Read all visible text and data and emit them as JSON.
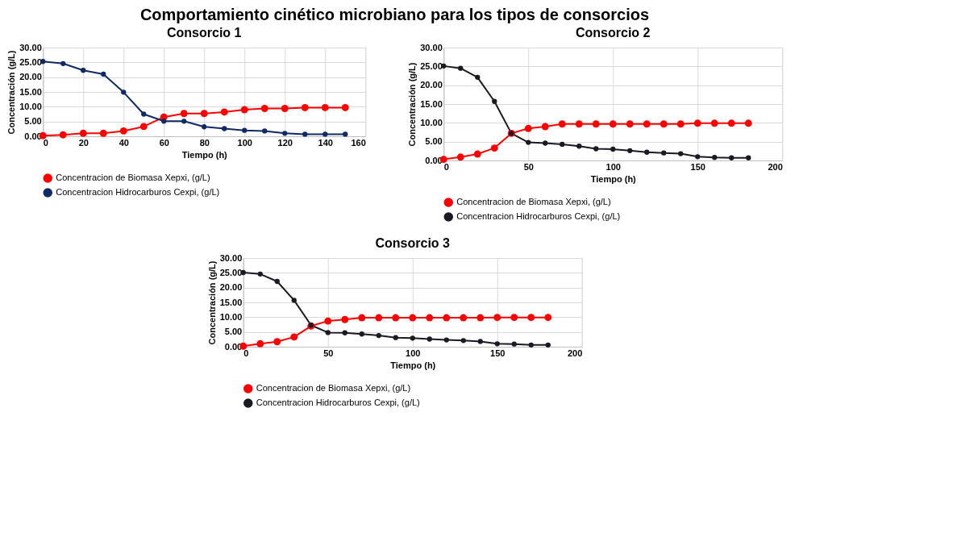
{
  "chart_data": [
    {
      "type": "other",
      "title": "Comportamiento cinético microbiano para los tipos de consorcios"
    },
    {
      "type": "line",
      "title": "Consorcio 1",
      "xlabel": "Tiempo (h)",
      "ylabel": "Concentración (g/L)",
      "marker": "circle",
      "grid": true,
      "legend": "bottom",
      "x": [
        0,
        10,
        20,
        30,
        40,
        50,
        60,
        70,
        80,
        90,
        100,
        110,
        120,
        130,
        140,
        150
      ],
      "xlim": [
        0,
        160
      ],
      "xticks": [
        0,
        20,
        40,
        60,
        80,
        100,
        120,
        140,
        160
      ],
      "ylim": [
        0,
        30
      ],
      "yticks": [
        {
          "value": 0,
          "label": "0.00"
        },
        {
          "value": 5,
          "label": "5.00"
        },
        {
          "value": 10,
          "label": "10.00"
        },
        {
          "value": 15,
          "label": "15.00"
        },
        {
          "value": 20,
          "label": "20.00"
        },
        {
          "value": 25,
          "label": "25.00"
        },
        {
          "value": 30,
          "label": "30.00"
        }
      ],
      "series": [
        {
          "name": "Concentracion de  Biomasa Xepxi, (g/L)",
          "color": "#ff0000",
          "values": [
            0.2,
            0.5,
            1.0,
            1.0,
            1.8,
            3.3,
            6.5,
            7.7,
            7.7,
            8.2,
            9.0,
            9.4,
            9.4,
            9.7,
            9.7,
            9.7
          ]
        },
        {
          "name": "Concentracion Hidrocarburos Cexpi, (g/L)",
          "color": "#102a66",
          "values": [
            25.3,
            24.6,
            22.3,
            21.0,
            14.9,
            7.5,
            5.1,
            5.1,
            3.2,
            2.6,
            2.0,
            1.8,
            1.0,
            0.7,
            0.7,
            0.7
          ]
        }
      ]
    },
    {
      "type": "line",
      "title": "Consorcio 2",
      "xlabel": "Tiempo (h)",
      "ylabel": "Concentración (g/L)",
      "marker": "circle",
      "grid": true,
      "legend": "bottom",
      "x": [
        0,
        10,
        20,
        30,
        40,
        50,
        60,
        70,
        80,
        90,
        100,
        110,
        120,
        130,
        140,
        150,
        160,
        170,
        180
      ],
      "xlim": [
        0,
        200
      ],
      "xticks": [
        0,
        50,
        100,
        150,
        200
      ],
      "ylim": [
        0,
        30
      ],
      "yticks": [
        {
          "value": 0,
          "label": "0.00"
        },
        {
          "value": 5,
          "label": "5.00"
        },
        {
          "value": 10,
          "label": "10.00"
        },
        {
          "value": 15,
          "label": "15.00"
        },
        {
          "value": 20,
          "label": "20.00"
        },
        {
          "value": 25,
          "label": "25.00"
        },
        {
          "value": 30,
          "label": "30.00"
        }
      ],
      "series": [
        {
          "name": "Concentracion de  Biomasa Xepxi, (g/L)",
          "color": "#ff0000",
          "values": [
            0.3,
            0.9,
            1.7,
            3.3,
            7.2,
            8.5,
            9.0,
            9.7,
            9.7,
            9.7,
            9.7,
            9.7,
            9.7,
            9.7,
            9.7,
            9.9,
            9.9,
            9.9,
            9.9
          ]
        },
        {
          "name": "Concentracion Hidrocarburos Cexpi, (g/L)",
          "color": "#1a1a24",
          "values": [
            25.1,
            24.5,
            22.1,
            15.7,
            7.2,
            4.8,
            4.6,
            4.3,
            3.8,
            3.1,
            3.0,
            2.6,
            2.2,
            2.0,
            1.8,
            1.0,
            0.8,
            0.7,
            0.7
          ]
        }
      ]
    },
    {
      "type": "line",
      "title": "Consorcio 3",
      "xlabel": "Tiempo (h)",
      "ylabel": "Concentración (g/L)",
      "marker": "circle",
      "grid": true,
      "legend": "bottom",
      "x": [
        0,
        10,
        20,
        30,
        40,
        50,
        60,
        70,
        80,
        90,
        100,
        110,
        120,
        130,
        140,
        150,
        160,
        170,
        180
      ],
      "xlim": [
        0,
        200
      ],
      "xticks": [
        0,
        50,
        100,
        150,
        200
      ],
      "ylim": [
        0,
        30
      ],
      "yticks": [
        {
          "value": 0,
          "label": "0.00"
        },
        {
          "value": 5,
          "label": "5.00"
        },
        {
          "value": 10,
          "label": "10.00"
        },
        {
          "value": 15,
          "label": "15.00"
        },
        {
          "value": 20,
          "label": "20.00"
        },
        {
          "value": 25,
          "label": "25.00"
        },
        {
          "value": 30,
          "label": "30.00"
        }
      ],
      "series": [
        {
          "name": "Concentracion de  Biomasa Xepxi, (g/L)",
          "color": "#ff0000",
          "values": [
            0.2,
            1.0,
            1.7,
            3.3,
            7.0,
            8.7,
            9.2,
            9.8,
            9.8,
            9.8,
            9.8,
            9.8,
            9.8,
            9.8,
            9.8,
            9.9,
            9.9,
            9.9,
            9.9
          ]
        },
        {
          "name": "Concentracion Hidrocarburos Cexpi, (g/L)",
          "color": "#1a1a24",
          "values": [
            25.1,
            24.6,
            22.1,
            15.7,
            7.3,
            4.8,
            4.7,
            4.3,
            3.8,
            3.1,
            2.9,
            2.6,
            2.3,
            2.1,
            1.8,
            1.0,
            0.9,
            0.6,
            0.6
          ]
        }
      ]
    }
  ]
}
